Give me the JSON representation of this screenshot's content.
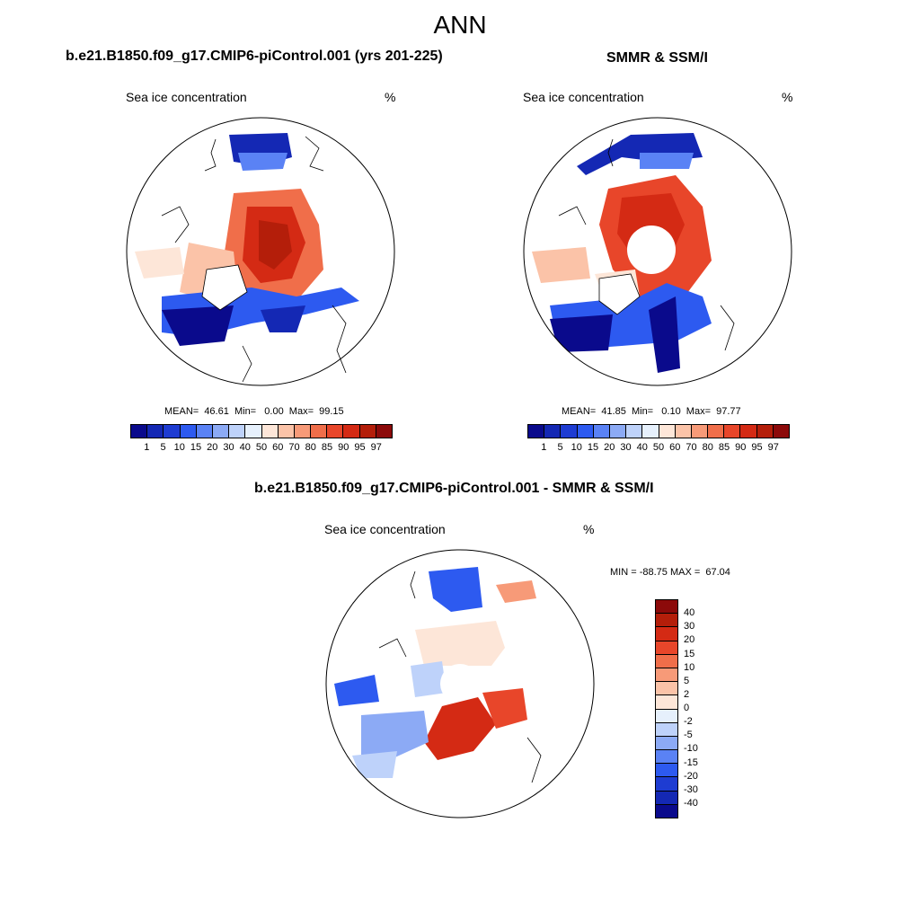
{
  "main_title": "ANN",
  "panels": [
    {
      "title": "b.e21.B1850.f09_g17.CMIP6-piControl.001 (yrs 201-225)",
      "label": "Sea ice concentration",
      "unit": "%",
      "stats": "MEAN=  46.61  Min=   0.00  Max=  99.15"
    },
    {
      "title": "SMMR & SSM/I",
      "label": "Sea ice concentration",
      "unit": "%",
      "stats": "MEAN=  41.85  Min=   0.10  Max=  97.77"
    },
    {
      "title": "b.e21.B1850.f09_g17.CMIP6-piControl.001 - SMMR & SSM/I",
      "label": "Sea ice concentration",
      "unit": "%",
      "stats": "MIN = -88.75 MAX =  67.04"
    }
  ],
  "colorbar_abs": {
    "colors": [
      "#0a0a8c",
      "#1428b4",
      "#1e3cd2",
      "#2d5af0",
      "#5a82f5",
      "#8caaf5",
      "#bed2fa",
      "#e6f0fc",
      "#fde6d8",
      "#fbc3a8",
      "#f79a78",
      "#f06e4a",
      "#e8462a",
      "#d42a14",
      "#b41e0a",
      "#8c0a0a"
    ],
    "ticks": [
      "1",
      "5",
      "10",
      "15",
      "20",
      "30",
      "40",
      "50",
      "60",
      "70",
      "80",
      "85",
      "90",
      "95",
      "97"
    ]
  },
  "colorbar_diff": {
    "colors": [
      "#8c0a0a",
      "#b41e0a",
      "#d42a14",
      "#e8462a",
      "#f06e4a",
      "#f79a78",
      "#fbc3a8",
      "#fde6d8",
      "#e6f0fc",
      "#bed2fa",
      "#8caaf5",
      "#5a82f5",
      "#2d5af0",
      "#1e3cd2",
      "#1428b4",
      "#0a0a8c"
    ],
    "ticks": [
      "40",
      "30",
      "20",
      "15",
      "10",
      "5",
      "2",
      "0",
      "-2",
      "-5",
      "-10",
      "-15",
      "-20",
      "-30",
      "-40"
    ]
  }
}
